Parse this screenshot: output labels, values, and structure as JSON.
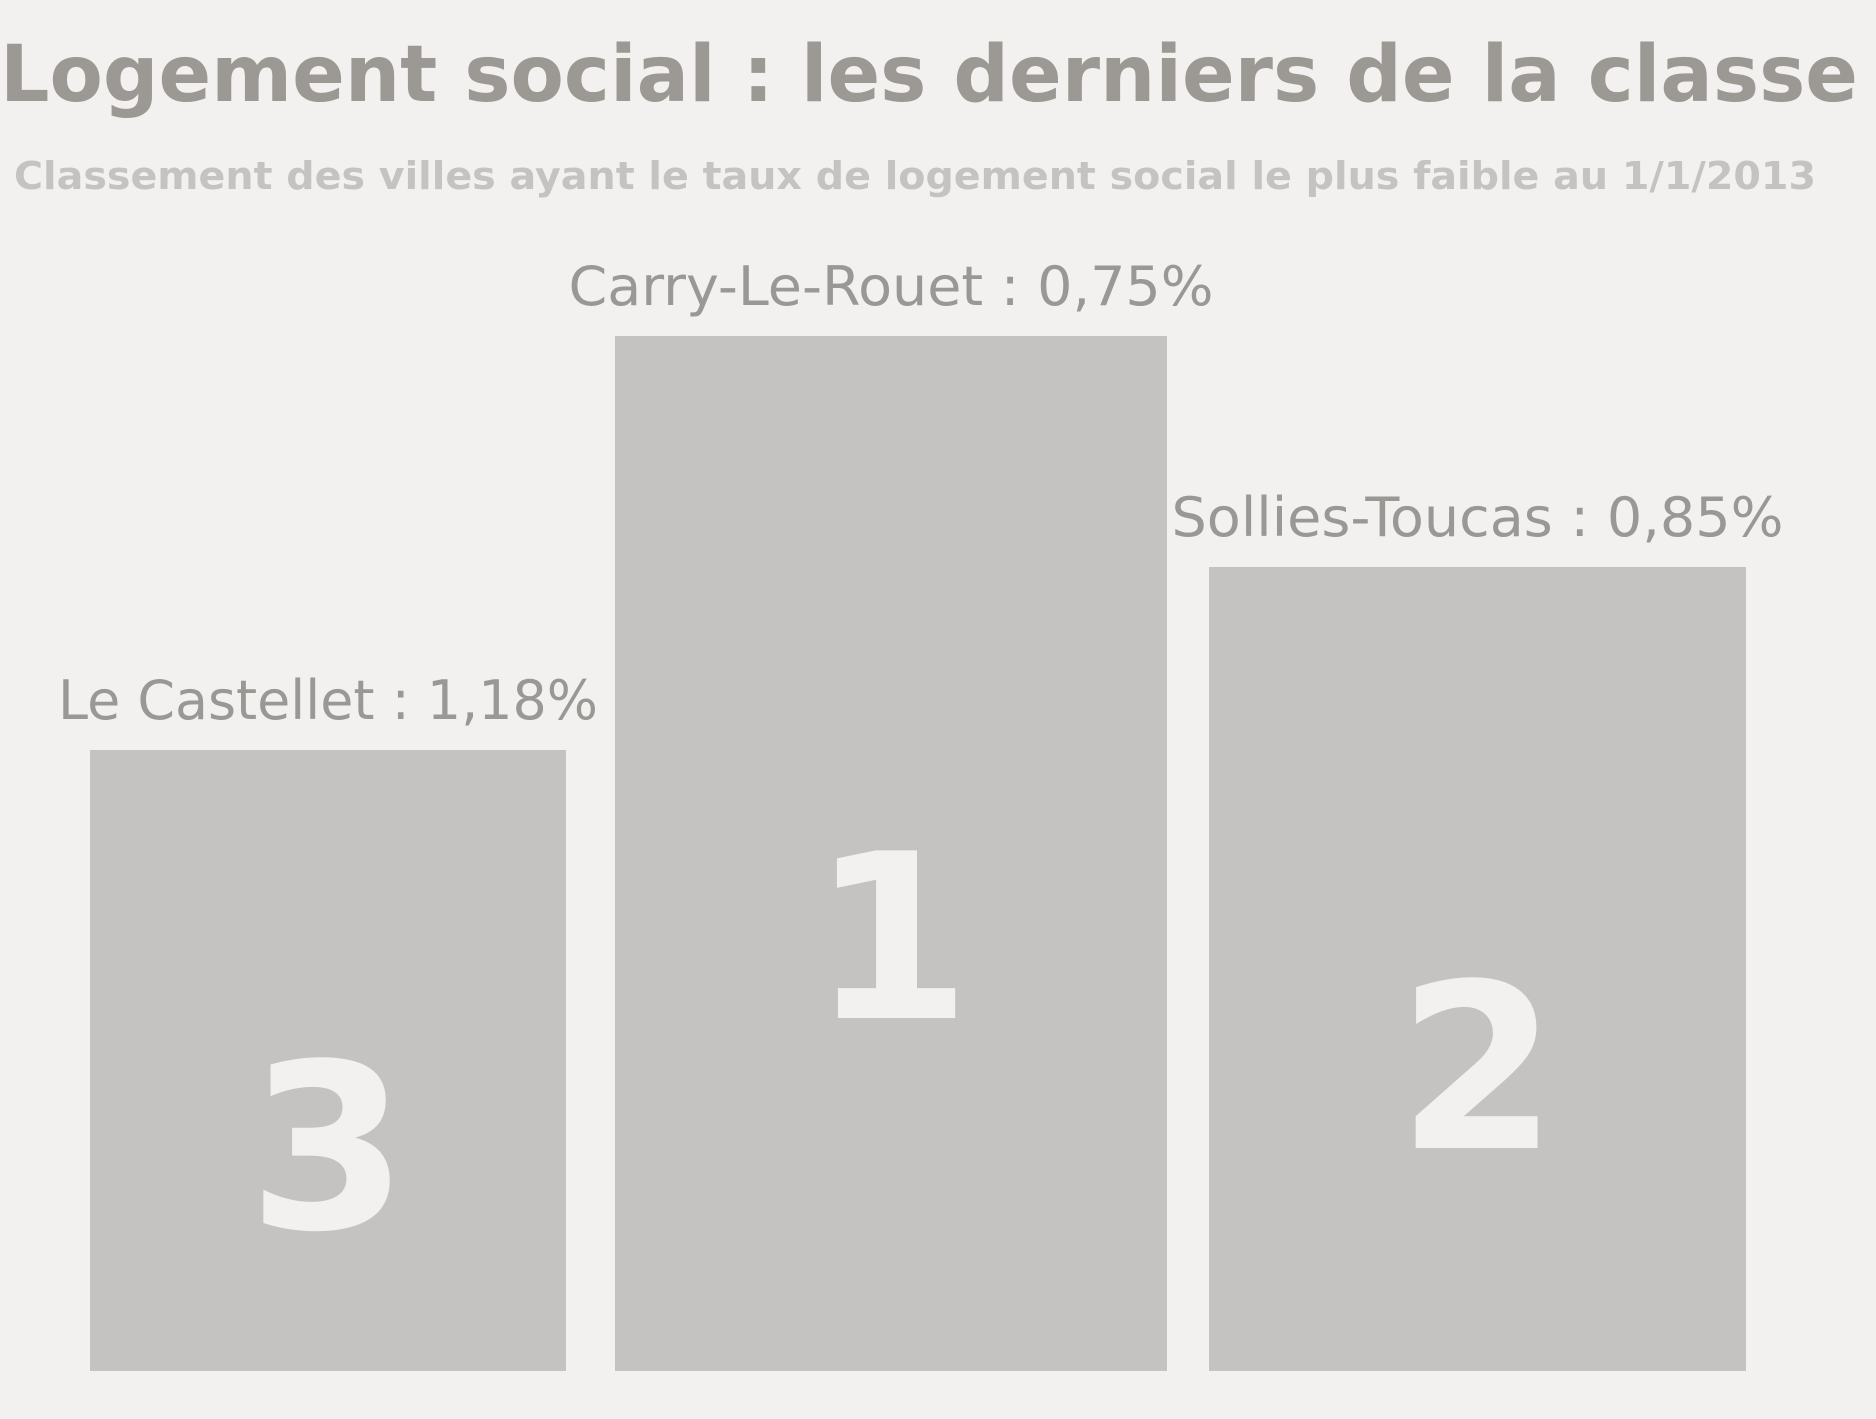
{
  "colors": {
    "background": "#f2f1ef",
    "bar": "#c4c3c1",
    "title": "#9c9894",
    "subtitle": "#c4c3c1",
    "label": "#9a9794",
    "rank_number": "#f2f1ef"
  },
  "chart_data": {
    "type": "bar",
    "title": "Logement social : les derniers de la classe",
    "subtitle": "Classement des villes ayant le taux de logement social le plus faible au 1/1/2013",
    "categories": [
      "Le Castellet",
      "Carry-Le-Rouet",
      "Sollies-Toucas"
    ],
    "values": [
      1.18,
      0.75,
      0.85
    ],
    "unit": "%",
    "ranks": [
      3,
      1,
      2
    ],
    "labels": [
      "Le Castellet : 1,18%",
      "Carry-Le-Rouet : 0,75%",
      "Sollies-Toucas : 0,85%"
    ],
    "grid": false,
    "legend": "none"
  }
}
